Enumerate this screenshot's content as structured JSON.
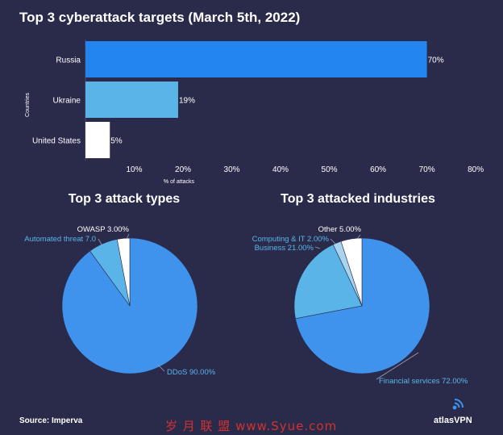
{
  "chart_data": [
    {
      "type": "bar",
      "orientation": "horizontal",
      "title": "Top 3 cyberattack targets (March 5th, 2022)",
      "xlabel": "% of attacks",
      "ylabel": "Countries",
      "categories": [
        "Russia",
        "Ukraine",
        "United States"
      ],
      "values": [
        70,
        19,
        5
      ],
      "value_labels": [
        "70%",
        "19%",
        "5%"
      ],
      "xticks": [
        10,
        20,
        30,
        40,
        50,
        60,
        70,
        80
      ],
      "xtick_labels": [
        "10%",
        "20%",
        "30%",
        "40%",
        "50%",
        "60%",
        "70%",
        "80%"
      ],
      "xlim": [
        0,
        78
      ],
      "colors": [
        "#2385f0",
        "#5ab4e8",
        "#ffffff"
      ],
      "grid": false
    },
    {
      "type": "pie",
      "title": "Top 3 attack types",
      "slices": [
        {
          "label": "DDoS 90.00%",
          "value": 90.0,
          "color": "#3f93ec",
          "label_color": "#5ab4e8"
        },
        {
          "label": "Automated threat 7.0",
          "value": 7.0,
          "color": "#5ab4e8",
          "label_color": "#5ab4e8"
        },
        {
          "label": "OWASP 3.00%",
          "value": 3.0,
          "color": "#ffffff",
          "label_color": "#ffffff"
        }
      ]
    },
    {
      "type": "pie",
      "title": "Top 3 attacked industries",
      "slices": [
        {
          "label": "Financial services 72.00%",
          "value": 72.0,
          "color": "#3f93ec",
          "label_color": "#5ab4e8"
        },
        {
          "label": "Business 21.00%",
          "value": 21.0,
          "color": "#5ab4e8",
          "label_color": "#5ab4e8"
        },
        {
          "label": "Computing & IT 2.00%",
          "value": 2.0,
          "color": "#a8d4ef",
          "label_color": "#5ab4e8"
        },
        {
          "label": "Other 5.00%",
          "value": 5.0,
          "color": "#ffffff",
          "label_color": "#ffffff"
        }
      ]
    }
  ],
  "footer": {
    "source": "Source: Imperva",
    "brand": "atlasVPN",
    "watermark": "岁 月 联 盟  www.Syue.com"
  }
}
